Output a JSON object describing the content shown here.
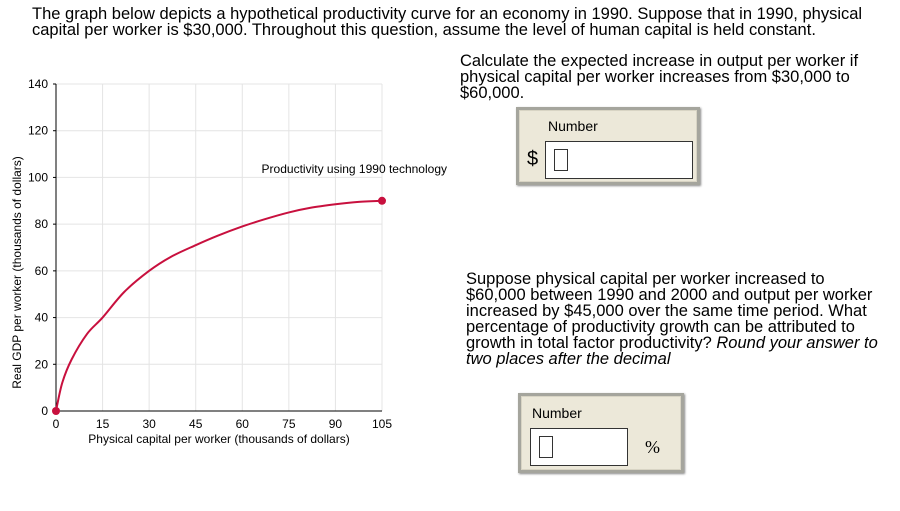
{
  "intro": "The graph below depicts a hypothetical productivity curve for an economy in 1990. Suppose that in 1990, physical capital per worker is $30,000. Throughout this question, assume the level of human capital is held constant.",
  "q1": {
    "text": "Calculate the expected increase in output per worker if physical capital per worker increases from $30,000 to $60,000.",
    "label": "Number",
    "prefix": "$",
    "value": ""
  },
  "q2": {
    "text": "Suppose physical capital per worker increased to $60,000 between 1990 and 2000 and output per worker increased by $45,000 over the same time period. What percentage of productivity growth can be attributed to growth in total factor productivity?",
    "instruction": "Round your answer to two places after the decimal",
    "label": "Number",
    "suffix": "%",
    "value": ""
  },
  "chart_data": {
    "type": "line",
    "xlabel": "Physical capital per worker (thousands of dollars)",
    "ylabel": "Real GDP per worker (thousands of dollars)",
    "xlim": [
      0,
      105
    ],
    "ylim": [
      0,
      140
    ],
    "xticks": [
      0,
      15,
      30,
      45,
      60,
      75,
      90,
      105
    ],
    "yticks": [
      0,
      20,
      40,
      60,
      80,
      100,
      120,
      140
    ],
    "grid": true,
    "series": [
      {
        "name": "Productivity using 1990 technology",
        "color": "#c8103e",
        "x": [
          0,
          2,
          5,
          10,
          15,
          22,
          30,
          37,
          45,
          52,
          60,
          67,
          75,
          82,
          90,
          97,
          105
        ],
        "y": [
          0,
          12,
          22,
          33,
          40,
          51,
          60,
          66,
          71,
          75,
          79,
          82,
          85,
          87,
          88.5,
          89.5,
          90
        ]
      }
    ],
    "annotation": "Productivity using 1990 technology"
  }
}
